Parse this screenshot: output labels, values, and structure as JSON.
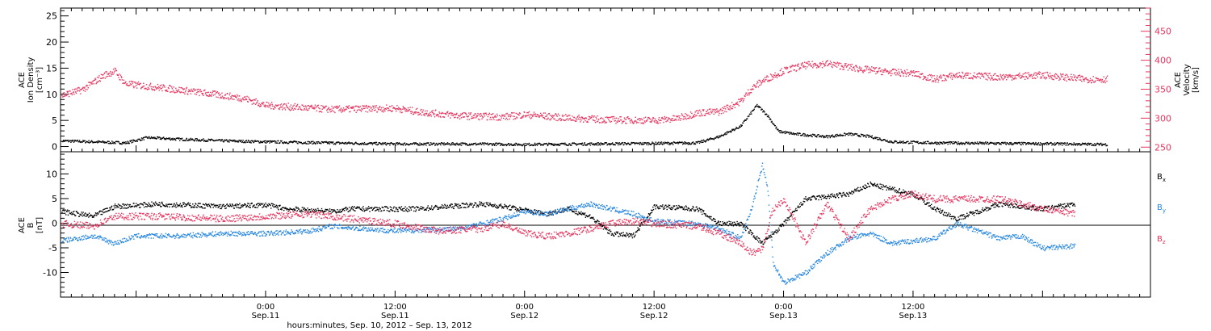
{
  "colors": {
    "black": "#000000",
    "pink": "#e8355f",
    "blue": "#2586e0",
    "axis": "#000000"
  },
  "xaxis": {
    "ticks": [
      {
        "time": "0:00",
        "date": "Sep.11"
      },
      {
        "time": "12:00",
        "date": "Sep.11"
      },
      {
        "time": "0:00",
        "date": "Sep.12"
      },
      {
        "time": "12:00",
        "date": "Sep.12"
      },
      {
        "time": "0:00",
        "date": "Sep.13"
      },
      {
        "time": "12:00",
        "date": "Sep.13"
      }
    ],
    "title": "hours:minutes, Sep. 10, 2012 – Sep. 13, 2012"
  },
  "chart_data": [
    {
      "type": "scatter",
      "panel": "top",
      "left_axis": {
        "label_line1": "ACE",
        "label_line2": "Ion Density",
        "label_line3": "[cm⁻³]",
        "ylim": [
          -1,
          26.5
        ],
        "ticks": [
          "0",
          "5",
          "10",
          "15",
          "20",
          "25"
        ]
      },
      "right_axis": {
        "label_line1": "ACE",
        "label_line2": "Velocity",
        "label_line3": "[km/s]",
        "ylim": [
          242,
          490
        ],
        "ticks": [
          "250",
          "300",
          "350",
          "400",
          "450"
        ]
      },
      "x_range_hours": [
        -19,
        82
      ],
      "series": [
        {
          "color": "black",
          "axis": "left",
          "points": [
            [
              -19,
              1.2
            ],
            [
              -16,
              1.0
            ],
            [
              -13,
              0.8
            ],
            [
              -11,
              1.8
            ],
            [
              -8,
              1.5
            ],
            [
              -4,
              1.2
            ],
            [
              0,
              1.0
            ],
            [
              6,
              0.8
            ],
            [
              12,
              0.6
            ],
            [
              18,
              0.6
            ],
            [
              24,
              0.5
            ],
            [
              30,
              0.6
            ],
            [
              36,
              0.7
            ],
            [
              40,
              0.8
            ],
            [
              42,
              2
            ],
            [
              44,
              4
            ],
            [
              45.5,
              8
            ],
            [
              46.5,
              6
            ],
            [
              47.5,
              3
            ],
            [
              49,
              2.5
            ],
            [
              52,
              2
            ],
            [
              54,
              2.5
            ],
            [
              56,
              2
            ],
            [
              58,
              1
            ],
            [
              62,
              0.8
            ],
            [
              68,
              0.7
            ],
            [
              74,
              0.6
            ],
            [
              78,
              0.5
            ]
          ]
        },
        {
          "color": "pink",
          "axis": "right",
          "points": [
            [
              -19,
              340
            ],
            [
              -17,
              350
            ],
            [
              -15,
              375
            ],
            [
              -14,
              382
            ],
            [
              -13,
              360
            ],
            [
              -10,
              354
            ],
            [
              -6,
              345
            ],
            [
              -2,
              335
            ],
            [
              0,
              323
            ],
            [
              6,
              316
            ],
            [
              12,
              318
            ],
            [
              14,
              312
            ],
            [
              18,
              305
            ],
            [
              22,
              303
            ],
            [
              24,
              307
            ],
            [
              28,
              301
            ],
            [
              32,
              298
            ],
            [
              36,
              297
            ],
            [
              38,
              300
            ],
            [
              40,
              310
            ],
            [
              42,
              312
            ],
            [
              44,
              330
            ],
            [
              45,
              352
            ],
            [
              46,
              365
            ],
            [
              48,
              383
            ],
            [
              50,
              392
            ],
            [
              52,
              395
            ],
            [
              55,
              386
            ],
            [
              58,
              380
            ],
            [
              60,
              378
            ],
            [
              62,
              368
            ],
            [
              64,
              375
            ],
            [
              68,
              372
            ],
            [
              72,
              375
            ],
            [
              76,
              368
            ],
            [
              78,
              368
            ]
          ]
        }
      ]
    },
    {
      "type": "scatter",
      "panel": "bottom",
      "left_axis": {
        "label_line1": "ACE",
        "label_line2": "B",
        "label_line3": "[nT]",
        "ylim": [
          -15,
          14.5
        ],
        "ticks": [
          "-10",
          "-5",
          "0",
          "5",
          "10"
        ]
      },
      "x_range_hours": [
        -19,
        82
      ],
      "legend": [
        "Bx",
        "By",
        "Bz"
      ],
      "series": [
        {
          "name": "Bx",
          "color": "black",
          "points": [
            [
              -19,
              2.5
            ],
            [
              -16,
              1.5
            ],
            [
              -14,
              3.5
            ],
            [
              -10,
              4
            ],
            [
              -4,
              3.5
            ],
            [
              0,
              3.8
            ],
            [
              2,
              3
            ],
            [
              6,
              2.5
            ],
            [
              8,
              3
            ],
            [
              14,
              3
            ],
            [
              20,
              4
            ],
            [
              22,
              3.5
            ],
            [
              26,
              2
            ],
            [
              28,
              3
            ],
            [
              30,
              1.5
            ],
            [
              32,
              -2
            ],
            [
              34,
              -2.5
            ],
            [
              36,
              3.5
            ],
            [
              40,
              3
            ],
            [
              42,
              0
            ],
            [
              44,
              0
            ],
            [
              46,
              -4
            ],
            [
              48,
              0
            ],
            [
              50,
              5
            ],
            [
              54,
              6
            ],
            [
              56,
              8
            ],
            [
              58,
              7
            ],
            [
              60,
              6
            ],
            [
              62,
              3
            ],
            [
              64,
              1
            ],
            [
              68,
              4
            ],
            [
              72,
              3
            ],
            [
              75,
              4
            ]
          ]
        },
        {
          "name": "By",
          "color": "blue",
          "points": [
            [
              -19,
              -3.5
            ],
            [
              -16,
              -2.5
            ],
            [
              -14,
              -4
            ],
            [
              -12,
              -2.5
            ],
            [
              -8,
              -2.5
            ],
            [
              -4,
              -2
            ],
            [
              0,
              -2
            ],
            [
              4,
              -1.5
            ],
            [
              6,
              -0.5
            ],
            [
              12,
              -1.5
            ],
            [
              18,
              -1
            ],
            [
              20,
              0
            ],
            [
              22,
              1
            ],
            [
              24,
              2.5
            ],
            [
              26,
              2
            ],
            [
              28,
              3
            ],
            [
              30,
              4
            ],
            [
              32,
              3
            ],
            [
              34,
              2
            ],
            [
              36,
              0.5
            ],
            [
              40,
              0
            ],
            [
              42,
              -1
            ],
            [
              44,
              -3
            ],
            [
              45,
              3
            ],
            [
              46,
              12
            ],
            [
              46.5,
              7
            ],
            [
              47,
              -8
            ],
            [
              48,
              -12
            ],
            [
              50,
              -10
            ],
            [
              52,
              -6
            ],
            [
              54,
              -3
            ],
            [
              56,
              -2
            ],
            [
              58,
              -4
            ],
            [
              62,
              -3
            ],
            [
              64,
              0
            ],
            [
              68,
              -3
            ],
            [
              70,
              -2.5
            ],
            [
              72,
              -5
            ],
            [
              75,
              -4.5
            ]
          ]
        },
        {
          "name": "Bz",
          "color": "pink",
          "points": [
            [
              -19,
              0
            ],
            [
              -16,
              -0.5
            ],
            [
              -14,
              1.5
            ],
            [
              -10,
              1.5
            ],
            [
              -4,
              1
            ],
            [
              0,
              1.5
            ],
            [
              4,
              2
            ],
            [
              8,
              1
            ],
            [
              12,
              0
            ],
            [
              16,
              -1.5
            ],
            [
              20,
              -1
            ],
            [
              22,
              0
            ],
            [
              24,
              -2
            ],
            [
              26,
              -2.5
            ],
            [
              28,
              -2
            ],
            [
              30,
              -1
            ],
            [
              32,
              0
            ],
            [
              34,
              0.5
            ],
            [
              36,
              0
            ],
            [
              40,
              -0.5
            ],
            [
              42,
              -2
            ],
            [
              44,
              -4
            ],
            [
              45,
              -6
            ],
            [
              46,
              -5
            ],
            [
              47,
              3
            ],
            [
              48,
              5
            ],
            [
              50,
              -4
            ],
            [
              52,
              4
            ],
            [
              54,
              -3
            ],
            [
              56,
              3
            ],
            [
              58,
              5
            ],
            [
              60,
              6
            ],
            [
              62,
              5
            ],
            [
              64,
              5
            ],
            [
              68,
              5
            ],
            [
              72,
              3
            ],
            [
              75,
              2
            ]
          ]
        }
      ]
    }
  ]
}
